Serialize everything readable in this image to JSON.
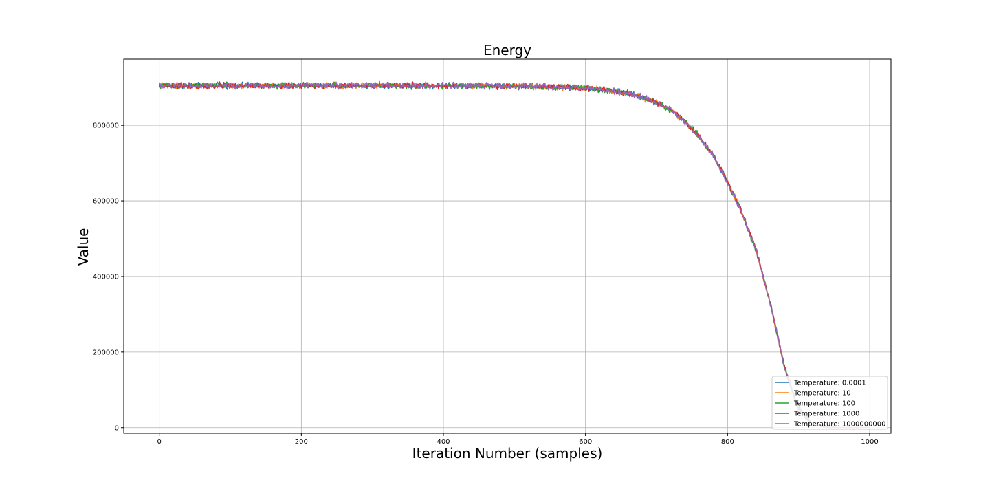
{
  "chart_data": {
    "type": "line",
    "title": "Energy",
    "xlabel": "Iteration Number (samples)",
    "ylabel": "Value",
    "xlim": [
      -50,
      1030
    ],
    "ylim": [
      -15000,
      975000
    ],
    "xticks": [
      0,
      200,
      400,
      600,
      800,
      1000
    ],
    "yticks": [
      0,
      200000,
      400000,
      600000,
      800000
    ],
    "grid": true,
    "legend_position": "lower-right",
    "x_range": [
      0,
      1000
    ],
    "series": [
      {
        "name": "Temperature: 0.0001",
        "color": "#1f77b4",
        "profile": {
          "x": [
            0,
            100,
            200,
            300,
            400,
            500,
            550,
            600,
            620,
            640,
            660,
            680,
            700,
            720,
            740,
            760,
            780,
            800,
            820,
            840,
            860,
            880,
            900,
            920,
            940,
            960,
            980,
            1000
          ],
          "y": [
            905000,
            905000,
            905000,
            905000,
            905000,
            904000,
            902000,
            898000,
            895000,
            890000,
            884000,
            874000,
            860000,
            840000,
            810000,
            770000,
            720000,
            650000,
            570000,
            470000,
            330000,
            160000,
            50000,
            8000,
            1000,
            0,
            0,
            0
          ]
        }
      },
      {
        "name": "Temperature: 10",
        "color": "#ff7f0e",
        "profile": {
          "x": [
            0,
            100,
            200,
            300,
            400,
            500,
            550,
            600,
            620,
            640,
            660,
            680,
            700,
            720,
            740,
            760,
            780,
            800,
            820,
            840,
            860,
            880,
            900,
            920,
            940,
            960,
            980,
            1000
          ],
          "y": [
            905000,
            905000,
            905000,
            905000,
            905000,
            904000,
            902000,
            898000,
            895000,
            890000,
            884000,
            874000,
            860000,
            840000,
            810000,
            770000,
            720000,
            650000,
            570000,
            470000,
            330000,
            160000,
            50000,
            8000,
            1000,
            0,
            0,
            0
          ]
        }
      },
      {
        "name": "Temperature: 100",
        "color": "#2ca02c",
        "profile": {
          "x": [
            0,
            100,
            200,
            300,
            400,
            500,
            550,
            600,
            620,
            640,
            660,
            680,
            700,
            720,
            740,
            760,
            780,
            800,
            820,
            840,
            860,
            880,
            900,
            920,
            940,
            960,
            980,
            1000
          ],
          "y": [
            905000,
            905000,
            905000,
            905000,
            905000,
            904000,
            902000,
            898000,
            895000,
            890000,
            884000,
            874000,
            860000,
            840000,
            810000,
            770000,
            720000,
            650000,
            570000,
            470000,
            330000,
            160000,
            50000,
            8000,
            1000,
            0,
            0,
            0
          ]
        }
      },
      {
        "name": "Temperature: 1000",
        "color": "#d62728",
        "profile": {
          "x": [
            0,
            100,
            200,
            300,
            400,
            500,
            550,
            600,
            620,
            640,
            660,
            680,
            700,
            720,
            740,
            760,
            780,
            800,
            820,
            840,
            860,
            880,
            900,
            920,
            940,
            960,
            980,
            1000
          ],
          "y": [
            905000,
            905000,
            905000,
            905000,
            905000,
            904000,
            902000,
            898000,
            895000,
            890000,
            884000,
            874000,
            860000,
            840000,
            810000,
            770000,
            720000,
            650000,
            570000,
            470000,
            330000,
            160000,
            50000,
            8000,
            1000,
            0,
            0,
            0
          ]
        }
      },
      {
        "name": "Temperature: 1000000000",
        "color": "#9467bd",
        "profile": {
          "x": [
            0,
            100,
            200,
            300,
            400,
            500,
            550,
            600,
            620,
            640,
            660,
            680,
            700,
            720,
            740,
            760,
            780,
            800,
            820,
            840,
            860,
            880,
            900,
            920,
            940,
            960,
            980,
            1000
          ],
          "y": [
            905000,
            905000,
            905000,
            905000,
            905000,
            904000,
            902000,
            898000,
            895000,
            890000,
            884000,
            874000,
            860000,
            840000,
            810000,
            770000,
            720000,
            650000,
            570000,
            470000,
            330000,
            160000,
            50000,
            8000,
            1000,
            0,
            0,
            0
          ]
        }
      }
    ]
  }
}
